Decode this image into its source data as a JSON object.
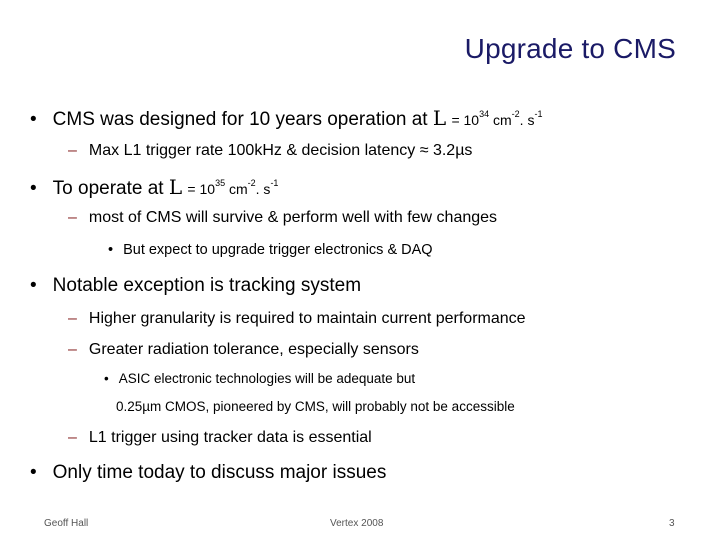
{
  "title": "Upgrade to CMS",
  "bullets": {
    "b1": {
      "text": "CMS was designed for 10 years operation at",
      "symbol": "L",
      "eq": "= 10",
      "exp": "34",
      "unit1": " cm",
      "unit1_exp": "-2",
      "unit2": ". s",
      "unit2_exp": "-1",
      "sub1": "Max L1 trigger rate 100kHz & decision latency ≈ 3.2µs"
    },
    "b2": {
      "text": "To operate at",
      "symbol": "L",
      "eq": "= 10",
      "exp": "35",
      "unit1": " cm",
      "unit1_exp": "-2",
      "unit2": ". s",
      "unit2_exp": "-1",
      "sub1": "most of CMS will survive & perform well with few changes",
      "sub1_sub1": "But expect to upgrade trigger electronics & DAQ"
    },
    "b3": {
      "text": "Notable exception is tracking system",
      "sub1": "Higher granularity is required to maintain current performance",
      "sub2": "Greater radiation tolerance, especially sensors",
      "sub2_sub1_line1": "ASIC electronic technologies will be adequate but",
      "sub2_sub1_line2": "0.25µm CMOS, pioneered by CMS, will probably not be accessible",
      "sub3": "L1 trigger using tracker data is essential"
    },
    "b4": {
      "text": "Only time today to discuss major issues"
    }
  },
  "glyphs": {
    "bullet": "•",
    "dash": "–"
  },
  "footer": {
    "author": "Geoff Hall",
    "event": "Vertex 2008",
    "page": "3"
  },
  "colors": {
    "title": "#1a1a66",
    "dash": "#8a2a2a"
  }
}
